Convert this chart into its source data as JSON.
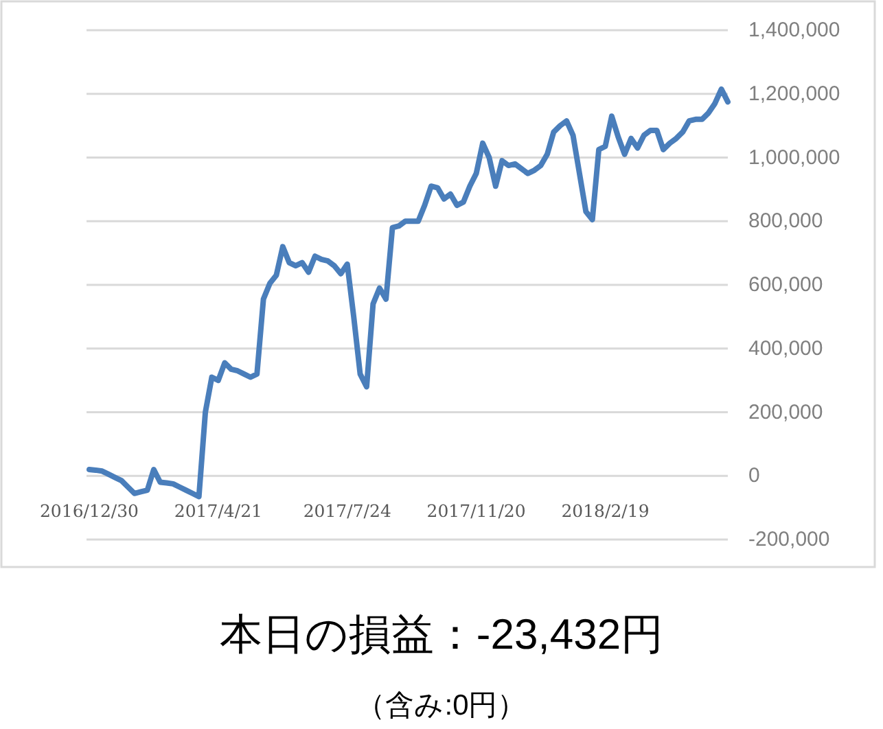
{
  "chart_data": {
    "type": "line",
    "title": "本日の損益：-23,432円",
    "subtitle": "（含み:0円）",
    "categories": [
      "2016/12/30",
      null,
      null,
      null,
      null,
      null,
      null,
      null,
      null,
      null,
      null,
      null,
      null,
      null,
      null,
      null,
      null,
      null,
      null,
      null,
      "2017/4/21",
      null,
      null,
      null,
      null,
      null,
      null,
      null,
      null,
      null,
      null,
      null,
      null,
      null,
      null,
      null,
      null,
      null,
      null,
      null,
      "2017/7/24",
      null,
      null,
      null,
      null,
      null,
      null,
      null,
      null,
      null,
      null,
      null,
      null,
      null,
      null,
      null,
      null,
      null,
      null,
      null,
      "2017/11/20",
      null,
      null,
      null,
      null,
      null,
      null,
      null,
      null,
      null,
      null,
      null,
      null,
      null,
      null,
      null,
      null,
      null,
      null,
      null,
      "2018/2/19",
      null,
      null,
      null,
      null,
      null,
      null,
      null,
      null,
      null,
      null,
      null,
      null,
      null,
      null,
      null,
      null,
      null,
      null,
      null
    ],
    "series": [
      {
        "color": "#4a7ebb",
        "values": [
          20000,
          18000,
          15000,
          5000,
          -5000,
          -15000,
          -35000,
          -55000,
          -50000,
          -45000,
          20000,
          -20000,
          -22000,
          -25000,
          -35000,
          -45000,
          -55000,
          -65000,
          200000,
          310000,
          300000,
          355000,
          335000,
          330000,
          320000,
          310000,
          320000,
          555000,
          605000,
          630000,
          720000,
          670000,
          660000,
          670000,
          640000,
          690000,
          680000,
          675000,
          660000,
          635000,
          665000,
          500000,
          320000,
          280000,
          540000,
          590000,
          555000,
          780000,
          785000,
          800000,
          800000,
          800000,
          850000,
          910000,
          905000,
          870000,
          885000,
          850000,
          860000,
          910000,
          950000,
          1045000,
          1000000,
          910000,
          990000,
          975000,
          980000,
          965000,
          950000,
          960000,
          975000,
          1010000,
          1080000,
          1100000,
          1115000,
          1070000,
          950000,
          830000,
          805000,
          1025000,
          1035000,
          1130000,
          1065000,
          1010000,
          1060000,
          1030000,
          1070000,
          1085000,
          1085000,
          1025000,
          1045000,
          1060000,
          1080000,
          1115000,
          1120000,
          1120000,
          1140000,
          1170000,
          1215000,
          1175000
        ]
      }
    ],
    "ylim": [
      -200000,
      1400000
    ],
    "yticks": [
      {
        "value": -200000,
        "label": "-200,000"
      },
      0,
      {
        "value": 200000,
        "label": "200,000"
      },
      {
        "value": 400000,
        "label": "400,000"
      },
      {
        "value": 600000,
        "label": "600,000"
      },
      {
        "value": 800000,
        "label": "800,000"
      },
      {
        "value": 1000000,
        "label": "1,000,000"
      },
      {
        "value": 1200000,
        "label": "1,200,000"
      },
      {
        "value": 1400000,
        "label": "1,400,000"
      }
    ],
    "grid": "y"
  }
}
